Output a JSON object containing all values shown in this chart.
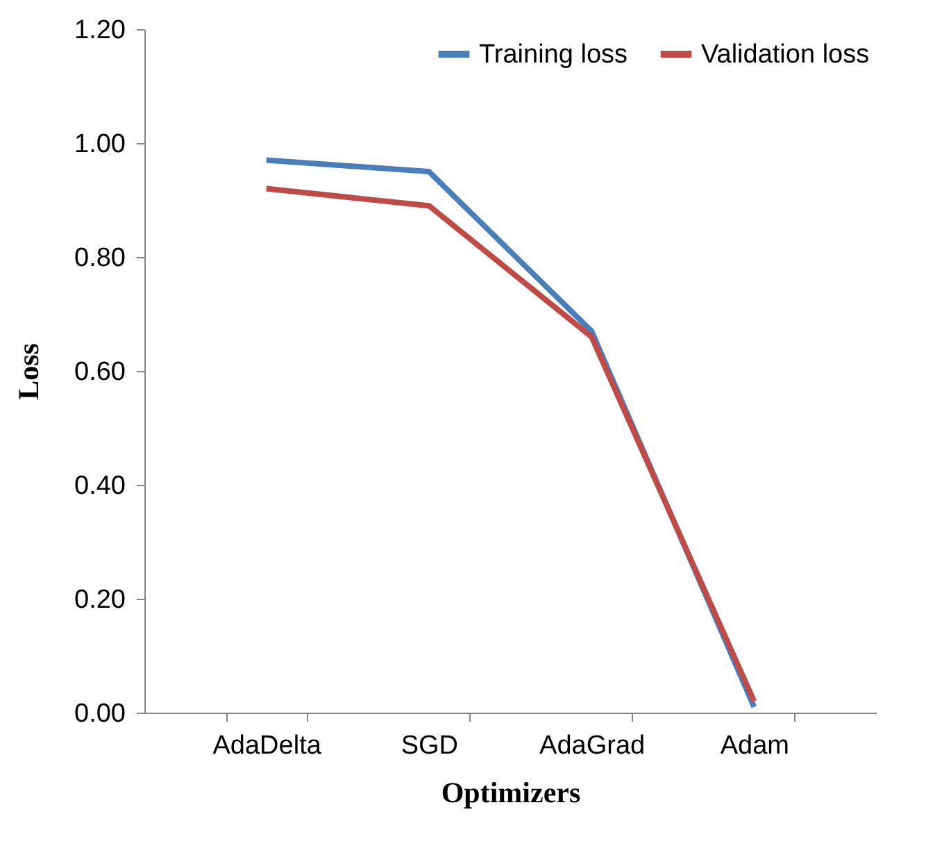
{
  "chart_data": {
    "type": "line",
    "xlabel": "Optimizers",
    "ylabel": "Loss",
    "categories": [
      "AdaDelta",
      "SGD",
      "AdaGrad",
      "Adam"
    ],
    "series": [
      {
        "name": "Training loss",
        "color": "#4a7ebb",
        "values": [
          0.97,
          0.95,
          0.67,
          0.01
        ]
      },
      {
        "name": "Validation loss",
        "color": "#be4b48",
        "values": [
          0.92,
          0.89,
          0.66,
          0.02
        ]
      }
    ],
    "ylim": [
      0,
      1.2
    ],
    "yticks": [
      {
        "value": 0,
        "label": "0.00"
      },
      {
        "value": 0.2,
        "label": "0.20"
      },
      {
        "value": 0.4,
        "label": "0.40"
      },
      {
        "value": 0.6,
        "label": "0.60"
      },
      {
        "value": 0.8,
        "label": "0.80"
      },
      {
        "value": 1,
        "label": "1.00"
      },
      {
        "value": 1.2,
        "label": "1.20"
      }
    ],
    "grid": false,
    "legend": "top right",
    "marker": "none",
    "line_style": "solid"
  }
}
